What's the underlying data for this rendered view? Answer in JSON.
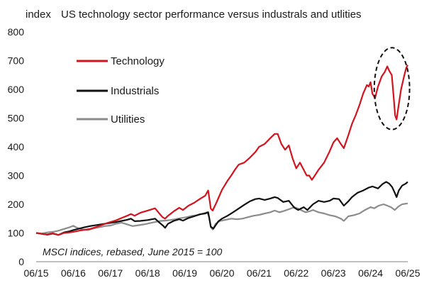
{
  "chart_data": {
    "type": "line",
    "title": "US technology sector performance versus industrals and utlities",
    "ylabel": "index",
    "ylim": [
      0,
      800
    ],
    "yticks": [
      0,
      100,
      200,
      300,
      400,
      500,
      600,
      700,
      800
    ],
    "xlim": [
      2015.5,
      2025.5
    ],
    "xticks": [
      {
        "value": 2015.5,
        "label": "06/15"
      },
      {
        "value": 2016.5,
        "label": "06/16"
      },
      {
        "value": 2017.5,
        "label": "06/17"
      },
      {
        "value": 2018.5,
        "label": "06/18"
      },
      {
        "value": 2019.5,
        "label": "06/19"
      },
      {
        "value": 2020.5,
        "label": "06/20"
      },
      {
        "value": 2021.5,
        "label": "06/21"
      },
      {
        "value": 2022.5,
        "label": "06/22"
      },
      {
        "value": 2023.5,
        "label": "06/23"
      },
      {
        "value": 2024.5,
        "label": "06/24"
      },
      {
        "value": 2025.5,
        "label": "06/25"
      }
    ],
    "grid": false,
    "legend_position": "top-left",
    "annotation": "MSCI indices, rebased, June 2015 = 100",
    "highlight": {
      "shape": "dashed-ellipse",
      "x_range": [
        2024.6,
        2025.55
      ],
      "y_range": [
        460,
        745
      ]
    },
    "series": [
      {
        "name": "Technology",
        "color": "#d2141e",
        "points": [
          [
            2015.5,
            100
          ],
          [
            2015.65,
            97
          ],
          [
            2015.8,
            95
          ],
          [
            2015.95,
            99
          ],
          [
            2016.1,
            93
          ],
          [
            2016.25,
            100
          ],
          [
            2016.4,
            102
          ],
          [
            2016.5,
            104
          ],
          [
            2016.65,
            108
          ],
          [
            2016.8,
            111
          ],
          [
            2016.95,
            114
          ],
          [
            2017.1,
            120
          ],
          [
            2017.25,
            127
          ],
          [
            2017.4,
            134
          ],
          [
            2017.5,
            138
          ],
          [
            2017.65,
            144
          ],
          [
            2017.8,
            152
          ],
          [
            2017.95,
            160
          ],
          [
            2018.05,
            166
          ],
          [
            2018.15,
            160
          ],
          [
            2018.3,
            170
          ],
          [
            2018.5,
            178
          ],
          [
            2018.7,
            186
          ],
          [
            2018.8,
            170
          ],
          [
            2018.9,
            155
          ],
          [
            2018.97,
            150
          ],
          [
            2019.05,
            160
          ],
          [
            2019.2,
            175
          ],
          [
            2019.35,
            188
          ],
          [
            2019.45,
            180
          ],
          [
            2019.6,
            195
          ],
          [
            2019.75,
            205
          ],
          [
            2019.9,
            218
          ],
          [
            2020.05,
            230
          ],
          [
            2020.13,
            248
          ],
          [
            2020.2,
            185
          ],
          [
            2020.25,
            178
          ],
          [
            2020.35,
            205
          ],
          [
            2020.5,
            250
          ],
          [
            2020.65,
            282
          ],
          [
            2020.75,
            300
          ],
          [
            2020.85,
            320
          ],
          [
            2020.95,
            338
          ],
          [
            2021.1,
            345
          ],
          [
            2021.25,
            362
          ],
          [
            2021.4,
            382
          ],
          [
            2021.5,
            400
          ],
          [
            2021.65,
            410
          ],
          [
            2021.8,
            430
          ],
          [
            2021.92,
            445
          ],
          [
            2022.0,
            445
          ],
          [
            2022.1,
            410
          ],
          [
            2022.2,
            390
          ],
          [
            2022.3,
            405
          ],
          [
            2022.4,
            360
          ],
          [
            2022.5,
            325
          ],
          [
            2022.6,
            345
          ],
          [
            2022.7,
            320
          ],
          [
            2022.78,
            300
          ],
          [
            2022.85,
            300
          ],
          [
            2022.92,
            285
          ],
          [
            2023.0,
            300
          ],
          [
            2023.1,
            320
          ],
          [
            2023.25,
            345
          ],
          [
            2023.4,
            385
          ],
          [
            2023.5,
            415
          ],
          [
            2023.6,
            430
          ],
          [
            2023.7,
            410
          ],
          [
            2023.78,
            395
          ],
          [
            2023.9,
            440
          ],
          [
            2024.0,
            480
          ],
          [
            2024.1,
            510
          ],
          [
            2024.2,
            545
          ],
          [
            2024.3,
            585
          ],
          [
            2024.4,
            615
          ],
          [
            2024.45,
            610
          ],
          [
            2024.5,
            625
          ],
          [
            2024.55,
            585
          ],
          [
            2024.62,
            570
          ],
          [
            2024.7,
            610
          ],
          [
            2024.8,
            645
          ],
          [
            2024.88,
            660
          ],
          [
            2024.95,
            680
          ],
          [
            2025.0,
            665
          ],
          [
            2025.07,
            650
          ],
          [
            2025.12,
            575
          ],
          [
            2025.16,
            510
          ],
          [
            2025.2,
            495
          ],
          [
            2025.25,
            540
          ],
          [
            2025.32,
            600
          ],
          [
            2025.4,
            645
          ],
          [
            2025.46,
            675
          ],
          [
            2025.5,
            685
          ]
        ]
      },
      {
        "name": "Industrials",
        "color": "#111111",
        "points": [
          [
            2015.5,
            100
          ],
          [
            2015.65,
            97
          ],
          [
            2015.8,
            94
          ],
          [
            2015.95,
            98
          ],
          [
            2016.1,
            93
          ],
          [
            2016.25,
            102
          ],
          [
            2016.4,
            106
          ],
          [
            2016.5,
            110
          ],
          [
            2016.65,
            115
          ],
          [
            2016.8,
            120
          ],
          [
            2016.95,
            124
          ],
          [
            2017.1,
            127
          ],
          [
            2017.25,
            130
          ],
          [
            2017.4,
            133
          ],
          [
            2017.5,
            135
          ],
          [
            2017.65,
            138
          ],
          [
            2017.8,
            142
          ],
          [
            2017.95,
            146
          ],
          [
            2018.05,
            150
          ],
          [
            2018.15,
            141
          ],
          [
            2018.3,
            142
          ],
          [
            2018.5,
            145
          ],
          [
            2018.7,
            150
          ],
          [
            2018.8,
            138
          ],
          [
            2018.92,
            125
          ],
          [
            2018.97,
            118
          ],
          [
            2019.05,
            132
          ],
          [
            2019.2,
            142
          ],
          [
            2019.35,
            148
          ],
          [
            2019.45,
            143
          ],
          [
            2019.6,
            152
          ],
          [
            2019.75,
            158
          ],
          [
            2019.9,
            165
          ],
          [
            2020.05,
            168
          ],
          [
            2020.13,
            172
          ],
          [
            2020.2,
            122
          ],
          [
            2020.27,
            115
          ],
          [
            2020.4,
            140
          ],
          [
            2020.5,
            150
          ],
          [
            2020.65,
            160
          ],
          [
            2020.8,
            172
          ],
          [
            2020.95,
            185
          ],
          [
            2021.1,
            198
          ],
          [
            2021.25,
            210
          ],
          [
            2021.4,
            218
          ],
          [
            2021.5,
            220
          ],
          [
            2021.65,
            215
          ],
          [
            2021.8,
            220
          ],
          [
            2021.92,
            225
          ],
          [
            2022.0,
            222
          ],
          [
            2022.15,
            208
          ],
          [
            2022.3,
            212
          ],
          [
            2022.45,
            188
          ],
          [
            2022.55,
            180
          ],
          [
            2022.7,
            190
          ],
          [
            2022.8,
            180
          ],
          [
            2022.95,
            200
          ],
          [
            2023.1,
            212
          ],
          [
            2023.25,
            208
          ],
          [
            2023.4,
            212
          ],
          [
            2023.5,
            220
          ],
          [
            2023.65,
            218
          ],
          [
            2023.78,
            195
          ],
          [
            2023.9,
            210
          ],
          [
            2024.0,
            225
          ],
          [
            2024.15,
            240
          ],
          [
            2024.3,
            248
          ],
          [
            2024.45,
            258
          ],
          [
            2024.55,
            262
          ],
          [
            2024.7,
            255
          ],
          [
            2024.82,
            270
          ],
          [
            2024.92,
            278
          ],
          [
            2025.0,
            272
          ],
          [
            2025.08,
            260
          ],
          [
            2025.15,
            240
          ],
          [
            2025.2,
            225
          ],
          [
            2025.26,
            248
          ],
          [
            2025.35,
            265
          ],
          [
            2025.45,
            272
          ],
          [
            2025.5,
            278
          ]
        ]
      },
      {
        "name": "Utilities",
        "color": "#8c8c8c",
        "points": [
          [
            2015.5,
            100
          ],
          [
            2015.65,
            98
          ],
          [
            2015.8,
            102
          ],
          [
            2015.95,
            104
          ],
          [
            2016.1,
            108
          ],
          [
            2016.25,
            114
          ],
          [
            2016.4,
            120
          ],
          [
            2016.5,
            125
          ],
          [
            2016.6,
            118
          ],
          [
            2016.75,
            112
          ],
          [
            2016.9,
            110
          ],
          [
            2017.05,
            116
          ],
          [
            2017.2,
            120
          ],
          [
            2017.35,
            124
          ],
          [
            2017.5,
            126
          ],
          [
            2017.65,
            132
          ],
          [
            2017.8,
            136
          ],
          [
            2017.95,
            130
          ],
          [
            2018.1,
            124
          ],
          [
            2018.25,
            127
          ],
          [
            2018.4,
            130
          ],
          [
            2018.55,
            134
          ],
          [
            2018.7,
            138
          ],
          [
            2018.85,
            142
          ],
          [
            2018.97,
            143
          ],
          [
            2019.1,
            145
          ],
          [
            2019.25,
            148
          ],
          [
            2019.4,
            152
          ],
          [
            2019.55,
            155
          ],
          [
            2019.7,
            160
          ],
          [
            2019.85,
            162
          ],
          [
            2020.0,
            168
          ],
          [
            2020.1,
            172
          ],
          [
            2020.15,
            158
          ],
          [
            2020.2,
            120
          ],
          [
            2020.25,
            112
          ],
          [
            2020.33,
            132
          ],
          [
            2020.45,
            142
          ],
          [
            2020.6,
            146
          ],
          [
            2020.75,
            150
          ],
          [
            2020.9,
            148
          ],
          [
            2021.05,
            150
          ],
          [
            2021.2,
            155
          ],
          [
            2021.35,
            160
          ],
          [
            2021.5,
            163
          ],
          [
            2021.65,
            168
          ],
          [
            2021.8,
            172
          ],
          [
            2021.92,
            178
          ],
          [
            2022.05,
            172
          ],
          [
            2022.2,
            178
          ],
          [
            2022.35,
            185
          ],
          [
            2022.45,
            190
          ],
          [
            2022.55,
            185
          ],
          [
            2022.65,
            178
          ],
          [
            2022.75,
            172
          ],
          [
            2022.85,
            175
          ],
          [
            2022.95,
            180
          ],
          [
            2023.1,
            172
          ],
          [
            2023.25,
            168
          ],
          [
            2023.4,
            162
          ],
          [
            2023.55,
            158
          ],
          [
            2023.7,
            150
          ],
          [
            2023.78,
            142
          ],
          [
            2023.9,
            158
          ],
          [
            2024.05,
            162
          ],
          [
            2024.2,
            168
          ],
          [
            2024.35,
            180
          ],
          [
            2024.5,
            190
          ],
          [
            2024.6,
            186
          ],
          [
            2024.72,
            195
          ],
          [
            2024.85,
            200
          ],
          [
            2024.95,
            195
          ],
          [
            2025.05,
            190
          ],
          [
            2025.15,
            180
          ],
          [
            2025.25,
            192
          ],
          [
            2025.35,
            200
          ],
          [
            2025.45,
            202
          ],
          [
            2025.5,
            203
          ]
        ]
      }
    ]
  }
}
